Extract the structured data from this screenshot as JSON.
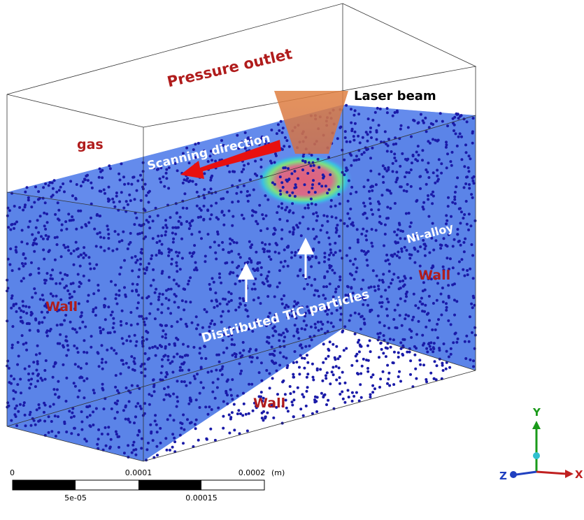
{
  "labels": {
    "pressure_outlet": "Pressure outlet",
    "laser_beam": "Laser beam",
    "gas": "gas",
    "scanning_direction": "Scanning direction",
    "ni_alloy": "Ni-alloy",
    "wall_left": "Wall",
    "wall_right": "Wall",
    "wall_bottom": "Wall",
    "particles": "Distributed TiC particles"
  },
  "scale_bar": {
    "top_labels": [
      "0",
      "0.0001",
      "0.0002"
    ],
    "unit": "(m)",
    "bottom_labels": [
      "5e-05",
      "0.00015"
    ]
  },
  "axes": {
    "y": "Y",
    "z": "Z",
    "x": "X"
  }
}
